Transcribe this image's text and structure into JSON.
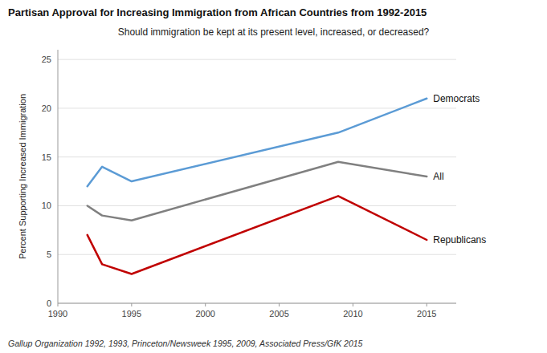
{
  "chart_data": {
    "type": "line",
    "title": "Partisan Approval for Increasing Immigration from African Countries from 1992-2015",
    "subtitle": "Should immigration be kept at its present level, increased, or decreased?",
    "footnote": "Gallup Organization 1992, 1993,  Princeton/Newsweek 1995, 2009,  Associated Press/GfK 2015",
    "y_label": "Percent Supporting Increased Immigration",
    "x": [
      1992,
      1993,
      1995,
      2009,
      2015
    ],
    "series": [
      {
        "name": "Democrats",
        "color": "#5B9BD5",
        "values": [
          12,
          14,
          12.5,
          17.5,
          21
        ]
      },
      {
        "name": "All",
        "color": "#808080",
        "values": [
          10,
          9,
          8.5,
          14.5,
          13
        ]
      },
      {
        "name": "Republicans",
        "color": "#C00000",
        "values": [
          7,
          4,
          3,
          11,
          6.5
        ]
      }
    ],
    "xlim": [
      1990,
      2017
    ],
    "ylim": [
      0,
      26
    ],
    "xticks": [
      1990,
      1995,
      2000,
      2005,
      2010,
      2015
    ],
    "yticks": [
      0,
      5,
      10,
      15,
      20,
      25
    ],
    "grid": true
  }
}
